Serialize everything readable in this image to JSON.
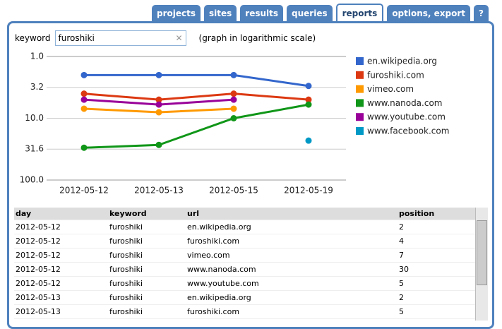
{
  "ui": {
    "tabs": [
      "projects",
      "sites",
      "results",
      "queries",
      "reports",
      "options, export",
      "?"
    ],
    "active_tab": 4,
    "keyword_label": "keyword",
    "keyword_value": "furoshiki",
    "note": "(graph in logarithmic scale)"
  },
  "chart_data": {
    "type": "line",
    "log_scale": true,
    "grid": true,
    "legend": "right",
    "categories": [
      "2012-05-12",
      "2012-05-13",
      "2012-05-15",
      "2012-05-19"
    ],
    "ylim": [
      100,
      1
    ],
    "yticks": [
      {
        "value": 1,
        "label": "1.0"
      },
      {
        "value": 3.162,
        "label": "3.2"
      },
      {
        "value": 10,
        "label": "10.0"
      },
      {
        "value": 31.62,
        "label": "31.6"
      },
      {
        "value": 100,
        "label": "100.0"
      }
    ],
    "series": [
      {
        "name": "en.wikipedia.org",
        "color": "#3366cc",
        "values": [
          2,
          2,
          2,
          3
        ]
      },
      {
        "name": "furoshiki.com",
        "color": "#dc3912",
        "values": [
          4,
          5,
          4,
          5
        ]
      },
      {
        "name": "vimeo.com",
        "color": "#ff9900",
        "values": [
          7,
          8,
          7,
          null
        ]
      },
      {
        "name": "www.nanoda.com",
        "color": "#109618",
        "values": [
          30,
          27,
          10,
          6
        ]
      },
      {
        "name": "www.youtube.com",
        "color": "#990099",
        "values": [
          5,
          6,
          5,
          null
        ]
      },
      {
        "name": "www.facebook.com",
        "color": "#0099c6",
        "values": [
          null,
          null,
          null,
          23
        ]
      }
    ]
  },
  "table": {
    "columns": [
      "day",
      "keyword",
      "url",
      "position"
    ],
    "rows": [
      [
        "2012-05-12",
        "furoshiki",
        "en.wikipedia.org",
        "2"
      ],
      [
        "2012-05-12",
        "furoshiki",
        "furoshiki.com",
        "4"
      ],
      [
        "2012-05-12",
        "furoshiki",
        "vimeo.com",
        "7"
      ],
      [
        "2012-05-12",
        "furoshiki",
        "www.nanoda.com",
        "30"
      ],
      [
        "2012-05-12",
        "furoshiki",
        "www.youtube.com",
        "5"
      ],
      [
        "2012-05-13",
        "furoshiki",
        "en.wikipedia.org",
        "2"
      ],
      [
        "2012-05-13",
        "furoshiki",
        "furoshiki.com",
        "5"
      ]
    ]
  }
}
